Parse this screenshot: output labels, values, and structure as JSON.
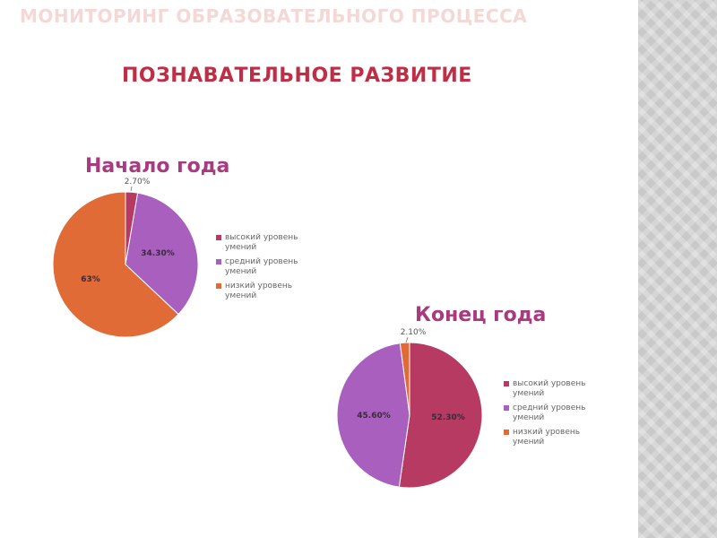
{
  "header": {
    "top_title": "МОНИТОРИНГ ОБРАЗОВАТЕЛЬНОГО ПРОЦЕССА",
    "slide_title": "ПОЗНАВАТЕЛЬНОЕ РАЗВИТИЕ"
  },
  "colors": {
    "high": "#b73a62",
    "medium": "#a85fbd",
    "low": "#e06b36",
    "title": "#c02d44",
    "chart_title": "#a83a7f",
    "stripe": "#c9c9c9"
  },
  "chart_data": [
    {
      "type": "pie",
      "title": "Начало года",
      "slices": [
        {
          "label": "высокий уровень умений",
          "value": 2.7,
          "display": "2.70%"
        },
        {
          "label": "средний уровень умений",
          "value": 34.3,
          "display": "34.30%"
        },
        {
          "label": "низкий уровень умений",
          "value": 63.0,
          "display": "63%"
        }
      ],
      "legend_position": "right"
    },
    {
      "type": "pie",
      "title": "Конец года",
      "slices": [
        {
          "label": "высокий уровень умений",
          "value": 52.3,
          "display": "52.30%"
        },
        {
          "label": "средний уровень умений",
          "value": 45.6,
          "display": "45.60%"
        },
        {
          "label": "низкий уровень умений",
          "value": 2.1,
          "display": "2.10%"
        }
      ],
      "legend_position": "right"
    }
  ]
}
